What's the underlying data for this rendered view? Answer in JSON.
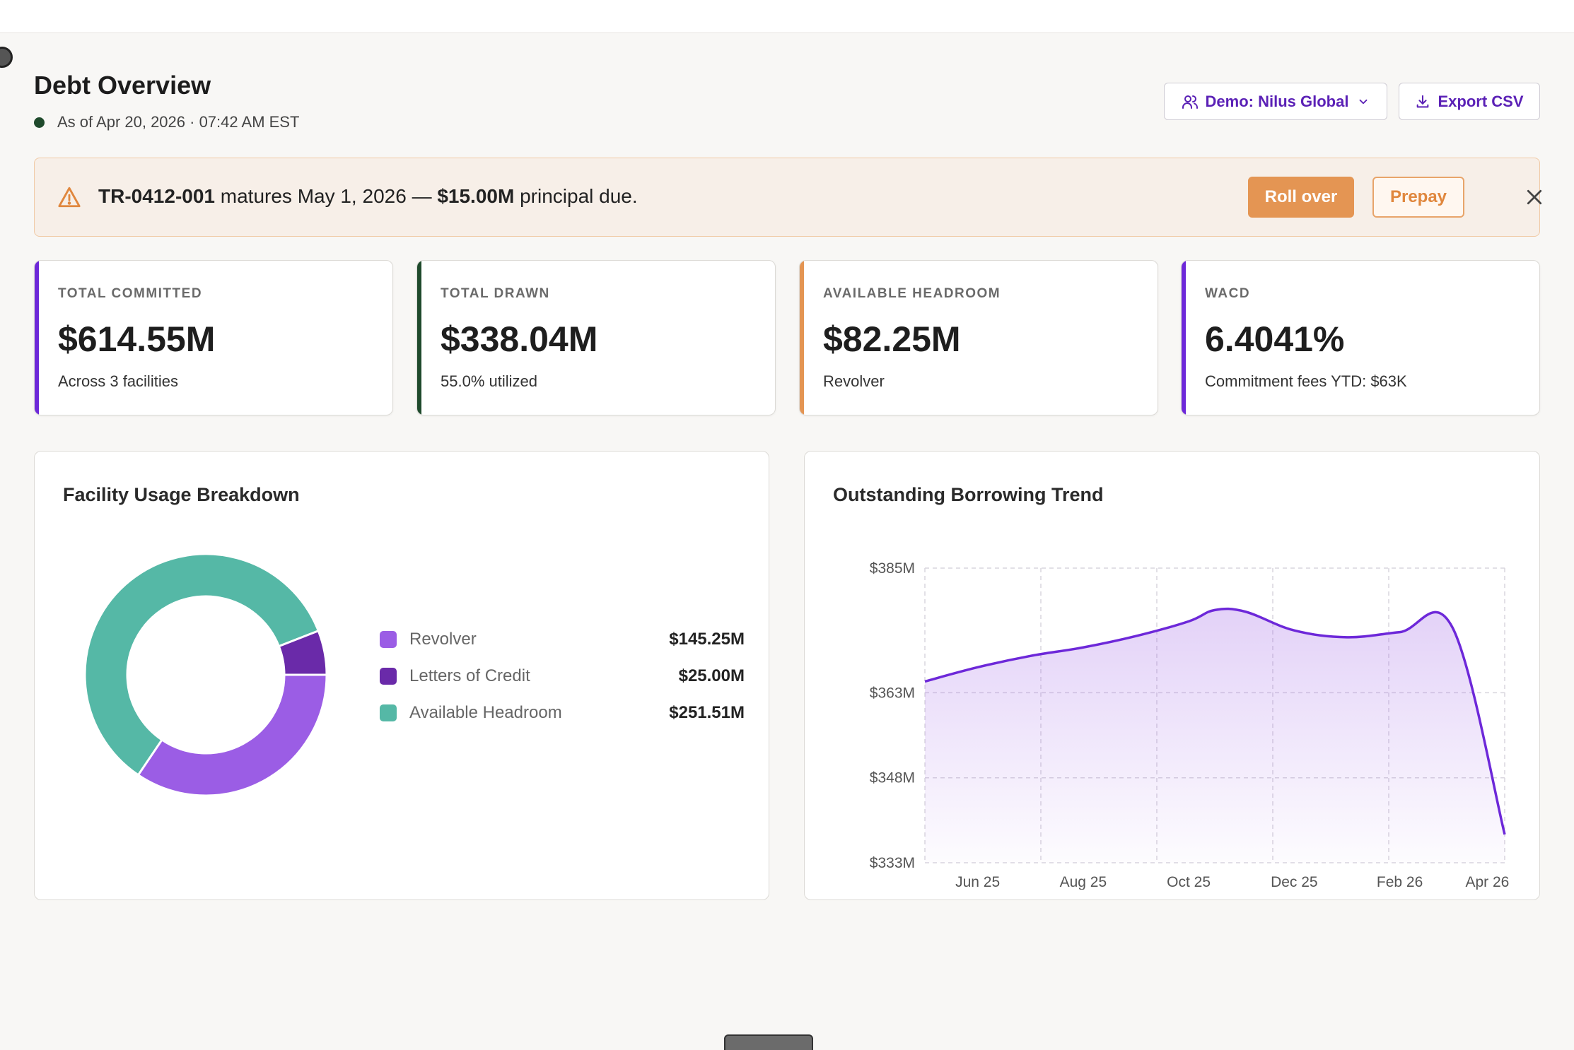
{
  "header": {
    "title": "Debt Overview",
    "as_of": "As of Apr 20, 2026 · 07:42 AM EST",
    "demo_button": "Demo: Nilus Global",
    "export_button": "Export CSV"
  },
  "alert": {
    "facility_id": "TR-0412-001",
    "middle_text": " matures May 1, 2026 — ",
    "amount": "$15.00M",
    "end_text": " principal due.",
    "roll_over": "Roll over",
    "prepay": "Prepay"
  },
  "kpis": [
    {
      "label": "TOTAL COMMITTED",
      "value": "$614.55M",
      "sub": "Across 3 facilities",
      "color": "#6d28d9"
    },
    {
      "label": "TOTAL DRAWN",
      "value": "$338.04M",
      "sub": "55.0% utilized",
      "color": "#1f4a2c"
    },
    {
      "label": "AVAILABLE HEADROOM",
      "value": "$82.25M",
      "sub": "Revolver",
      "color": "#e49553"
    },
    {
      "label": "WACD",
      "value": "6.4041%",
      "sub": "Commitment fees YTD: $63K",
      "color": "#6d28d9"
    }
  ],
  "facility_panel": {
    "title": "Facility Usage Breakdown"
  },
  "trend_panel": {
    "title": "Outstanding Borrowing Trend"
  },
  "chart_data": [
    {
      "type": "pie",
      "donut": true,
      "series": [
        {
          "name": "Revolver",
          "value": 145.25,
          "label": "$145.25M",
          "color": "#9b5de5"
        },
        {
          "name": "Letters of Credit",
          "value": 25.0,
          "label": "$25.00M",
          "color": "#6a2aa9"
        },
        {
          "name": "Available Headroom",
          "value": 251.51,
          "label": "$251.51M",
          "color": "#55b8a6"
        }
      ],
      "legend_placement": "right"
    },
    {
      "type": "area",
      "line_color": "#6d28d9",
      "yticks": [
        333,
        348,
        363,
        385
      ],
      "ytick_labels": [
        "$333M",
        "$348M",
        "$363M",
        "$385M"
      ],
      "ylim": [
        333,
        385
      ],
      "xticks": [
        "Jun 25",
        "Aug 25",
        "Oct 25",
        "Dec 25",
        "Feb 26",
        "Apr 26"
      ],
      "grid": true,
      "points": [
        {
          "x": "May 25",
          "y": 365.0
        },
        {
          "x": "Jun 25",
          "y": 367.5
        },
        {
          "x": "Jul 25",
          "y": 369.5
        },
        {
          "x": "Aug 25",
          "y": 371.0
        },
        {
          "x": "Sep 25",
          "y": 373.0
        },
        {
          "x": "Oct 25",
          "y": 375.6
        },
        {
          "x": "Nov 25",
          "y": 377.6
        },
        {
          "x": "Dec 25",
          "y": 377.3
        },
        {
          "x": "Jan 26",
          "y": 374.0
        },
        {
          "x": "Feb 26",
          "y": 372.8
        },
        {
          "x": "Mar 26",
          "y": 373.7
        },
        {
          "x": "Apr 26 (early)",
          "y": 374.5
        },
        {
          "x": "Apr 26",
          "y": 338.0
        }
      ]
    }
  ]
}
